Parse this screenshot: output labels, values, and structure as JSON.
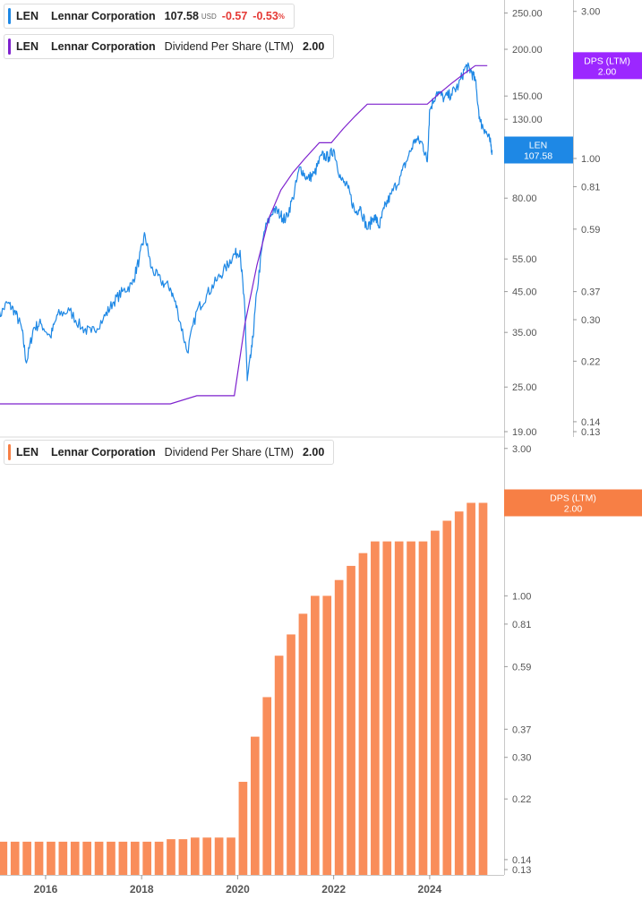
{
  "legend_price": {
    "symbol": "LEN",
    "name": "Lennar Corporation",
    "value": "107.58",
    "currency": "USD",
    "change": "-0.57",
    "change_pct": "-0.53",
    "pct_sign": "%",
    "color": "#1e88e5"
  },
  "legend_dps": {
    "symbol": "LEN",
    "name": "Lennar Corporation",
    "series": "Dividend Per Share (LTM)",
    "value": "2.00",
    "color": "#7e22ce"
  },
  "legend_dps_bars": {
    "symbol": "LEN",
    "name": "Lennar Corporation",
    "series": "Dividend Per Share (LTM)",
    "value": "2.00",
    "color": "#f77f45"
  },
  "chart_data": [
    {
      "type": "line",
      "panel": "top",
      "scale": "log",
      "series": [
        {
          "name": "LEN",
          "axis": "left",
          "color": "#1e88e5",
          "points": [
            [
              2015.0,
              38
            ],
            [
              2015.2,
              42
            ],
            [
              2015.35,
              40
            ],
            [
              2015.5,
              36
            ],
            [
              2015.6,
              29
            ],
            [
              2015.75,
              36
            ],
            [
              2015.9,
              37
            ],
            [
              2016.1,
              34
            ],
            [
              2016.25,
              39
            ],
            [
              2016.5,
              40
            ],
            [
              2016.75,
              36
            ],
            [
              2016.95,
              35
            ],
            [
              2017.2,
              38
            ],
            [
              2017.4,
              42
            ],
            [
              2017.6,
              45
            ],
            [
              2017.8,
              47
            ],
            [
              2017.95,
              55
            ],
            [
              2018.07,
              64
            ],
            [
              2018.2,
              52
            ],
            [
              2018.4,
              48
            ],
            [
              2018.6,
              46
            ],
            [
              2018.75,
              40
            ],
            [
              2018.95,
              31
            ],
            [
              2019.15,
              40
            ],
            [
              2019.35,
              44
            ],
            [
              2019.55,
              48
            ],
            [
              2019.75,
              52
            ],
            [
              2019.9,
              56
            ],
            [
              2020.05,
              58
            ],
            [
              2020.15,
              40
            ],
            [
              2020.2,
              26
            ],
            [
              2020.3,
              32
            ],
            [
              2020.4,
              45
            ],
            [
              2020.55,
              65
            ],
            [
              2020.75,
              75
            ],
            [
              2020.9,
              72
            ],
            [
              2021.0,
              70
            ],
            [
              2021.15,
              80
            ],
            [
              2021.3,
              97
            ],
            [
              2021.45,
              90
            ],
            [
              2021.6,
              93
            ],
            [
              2021.75,
              104
            ],
            [
              2021.9,
              103
            ],
            [
              2022.0,
              108
            ],
            [
              2022.15,
              90
            ],
            [
              2022.3,
              85
            ],
            [
              2022.45,
              73
            ],
            [
              2022.55,
              76
            ],
            [
              2022.7,
              66
            ],
            [
              2022.85,
              72
            ],
            [
              2022.95,
              67
            ],
            [
              2023.05,
              75
            ],
            [
              2023.2,
              82
            ],
            [
              2023.4,
              92
            ],
            [
              2023.55,
              103
            ],
            [
              2023.7,
              115
            ],
            [
              2023.85,
              112
            ],
            [
              2023.95,
              100
            ],
            [
              2024.0,
              138
            ],
            [
              2024.15,
              154
            ],
            [
              2024.3,
              148
            ],
            [
              2024.45,
              152
            ],
            [
              2024.6,
              160
            ],
            [
              2024.75,
              180
            ],
            [
              2024.85,
              176
            ],
            [
              2024.95,
              165
            ],
            [
              2025.05,
              128
            ],
            [
              2025.15,
              122
            ],
            [
              2025.25,
              114
            ],
            [
              2025.3,
              107.58
            ]
          ]
        },
        {
          "name": "Dividend Per Share (LTM)",
          "axis": "right",
          "color": "#7e22ce",
          "points": [
            [
              2015.0,
              0.16
            ],
            [
              2017.95,
              0.16
            ],
            [
              2018.15,
              0.16
            ],
            [
              2018.6,
              0.16
            ],
            [
              2019.15,
              0.17
            ],
            [
              2019.87,
              0.17
            ],
            [
              2019.93,
              0.17
            ],
            [
              2020.15,
              0.29
            ],
            [
              2020.4,
              0.45
            ],
            [
              2020.65,
              0.64
            ],
            [
              2020.9,
              0.79
            ],
            [
              2021.15,
              0.9
            ],
            [
              2021.4,
              1.0
            ],
            [
              2021.7,
              1.125
            ],
            [
              2021.95,
              1.125
            ],
            [
              2022.2,
              1.25
            ],
            [
              2022.45,
              1.375
            ],
            [
              2022.7,
              1.5
            ],
            [
              2022.95,
              1.5
            ],
            [
              2023.2,
              1.5
            ],
            [
              2023.45,
              1.5
            ],
            [
              2023.7,
              1.5
            ],
            [
              2023.95,
              1.5
            ],
            [
              2024.2,
              1.625
            ],
            [
              2024.45,
              1.75
            ],
            [
              2024.7,
              1.875
            ],
            [
              2024.95,
              2.0
            ],
            [
              2025.2,
              2.0
            ]
          ]
        }
      ],
      "left_ticks": [
        "250.00",
        "200.00",
        "150.00",
        "130.00",
        "80.00",
        "55.00",
        "45.00",
        "35.00",
        "25.00",
        "19.00"
      ],
      "right_ticks": [
        "3.00",
        "1.00",
        "0.81",
        "0.59",
        "0.37",
        "0.30",
        "0.22",
        "0.14",
        "0.13"
      ],
      "ylim_left": [
        19,
        280
      ],
      "ylim_right": [
        0.13,
        3.4
      ],
      "last_price_label": {
        "name": "LEN",
        "value": "107.58",
        "color": "#1e88e5"
      },
      "last_dps_label": {
        "name": "DPS (LTM)",
        "value": "2.00",
        "color": "#9c27ff"
      }
    },
    {
      "type": "bar",
      "panel": "bottom",
      "scale": "log",
      "color": "#f98d5a",
      "x": [
        2015.0,
        2015.25,
        2015.5,
        2015.75,
        2016.0,
        2016.25,
        2016.5,
        2016.75,
        2017.0,
        2017.25,
        2017.5,
        2017.75,
        2018.0,
        2018.25,
        2018.5,
        2018.75,
        2019.0,
        2019.25,
        2019.5,
        2019.75,
        2020.0,
        2020.25,
        2020.5,
        2020.75,
        2021.0,
        2021.25,
        2021.5,
        2021.75,
        2022.0,
        2022.25,
        2022.5,
        2022.75,
        2023.0,
        2023.25,
        2023.5,
        2023.75,
        2024.0,
        2024.25,
        2024.5,
        2024.75,
        2025.0
      ],
      "values": [
        0.16,
        0.16,
        0.16,
        0.16,
        0.16,
        0.16,
        0.16,
        0.16,
        0.16,
        0.16,
        0.16,
        0.16,
        0.16,
        0.16,
        0.163,
        0.163,
        0.165,
        0.165,
        0.165,
        0.165,
        0.25,
        0.35,
        0.47,
        0.64,
        0.75,
        0.875,
        1.0,
        1.0,
        1.125,
        1.25,
        1.375,
        1.5,
        1.5,
        1.5,
        1.5,
        1.5,
        1.625,
        1.75,
        1.875,
        2.0,
        2.0
      ],
      "series_name": "Dividend Per Share (LTM)",
      "right_ticks": [
        "3.00",
        "2.00",
        "1.00",
        "0.81",
        "0.59",
        "0.37",
        "0.30",
        "0.22",
        "0.14",
        "0.13"
      ],
      "ylim": [
        0.13,
        3.4
      ],
      "last_label": {
        "name": "DPS (LTM)",
        "value": "2.00",
        "color": "#f77f45"
      },
      "x_ticks": [
        "2016",
        "2018",
        "2020",
        "2022",
        "2024"
      ],
      "x_tick_values": [
        2016,
        2018,
        2020,
        2022,
        2024
      ]
    }
  ]
}
